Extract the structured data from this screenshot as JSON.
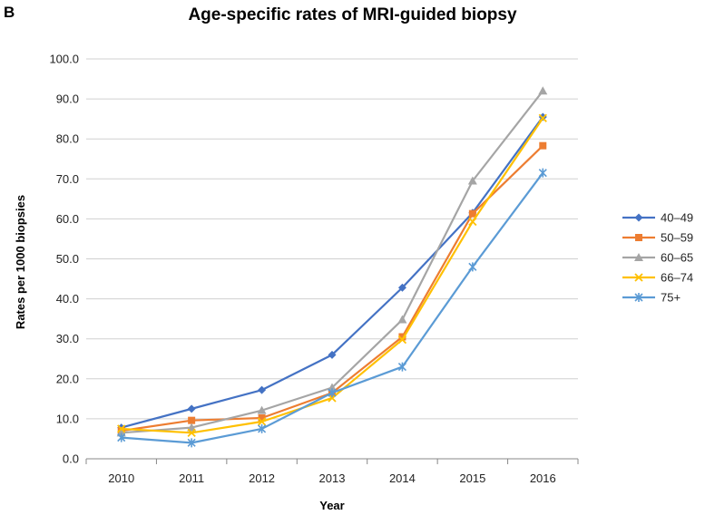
{
  "panel_label": "B",
  "chart_data": {
    "type": "line",
    "title": "Age-specific rates of MRI-guided biopsy",
    "xlabel": "Year",
    "ylabel": "Rates per 1000 biopsies",
    "categories": [
      "2010",
      "2011",
      "2012",
      "2013",
      "2014",
      "2015",
      "2016"
    ],
    "ylim": [
      0,
      100
    ],
    "yticks": [
      "0.0",
      "10.0",
      "20.0",
      "30.0",
      "40.0",
      "50.0",
      "60.0",
      "70.0",
      "80.0",
      "90.0",
      "100.0"
    ],
    "grid": "horizontal",
    "legend_position": "right",
    "series": [
      {
        "name": "40–49",
        "color": "#4472C4",
        "marker": "diamond",
        "values": [
          7.8,
          12.5,
          17.2,
          26.0,
          42.8,
          61.5,
          85.5
        ]
      },
      {
        "name": "50–59",
        "color": "#ED7D31",
        "marker": "square",
        "values": [
          7.0,
          9.6,
          10.2,
          16.5,
          30.5,
          61.3,
          78.3
        ]
      },
      {
        "name": "60–65",
        "color": "#A5A5A5",
        "marker": "triangle",
        "values": [
          6.5,
          7.8,
          12.1,
          17.8,
          34.8,
          69.5,
          92.0
        ]
      },
      {
        "name": "66–74",
        "color": "#FFC000",
        "marker": "x",
        "values": [
          7.5,
          6.5,
          9.3,
          15.2,
          29.8,
          59.3,
          85.2
        ]
      },
      {
        "name": "75+",
        "color": "#5B9BD5",
        "marker": "star",
        "values": [
          5.3,
          4.0,
          7.5,
          16.5,
          23.0,
          48.0,
          71.5
        ]
      }
    ]
  }
}
